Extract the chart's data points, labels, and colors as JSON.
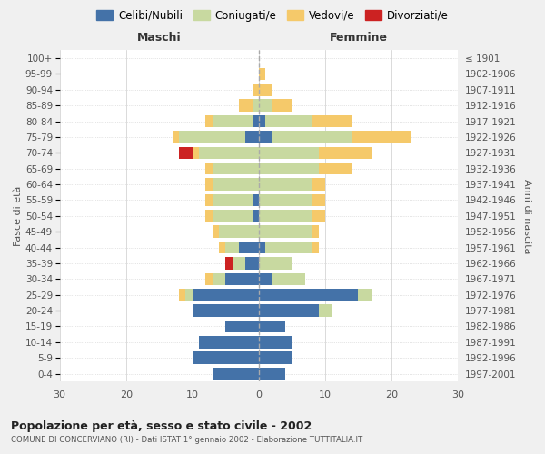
{
  "age_groups": [
    "100+",
    "95-99",
    "90-94",
    "85-89",
    "80-84",
    "75-79",
    "70-74",
    "65-69",
    "60-64",
    "55-59",
    "50-54",
    "45-49",
    "40-44",
    "35-39",
    "30-34",
    "25-29",
    "20-24",
    "15-19",
    "10-14",
    "5-9",
    "0-4"
  ],
  "birth_years": [
    "≤ 1901",
    "1902-1906",
    "1907-1911",
    "1912-1916",
    "1917-1921",
    "1922-1926",
    "1927-1931",
    "1932-1936",
    "1937-1941",
    "1942-1946",
    "1947-1951",
    "1952-1956",
    "1957-1961",
    "1962-1966",
    "1967-1971",
    "1972-1976",
    "1977-1981",
    "1982-1986",
    "1987-1991",
    "1992-1996",
    "1997-2001"
  ],
  "male": {
    "celibi": [
      0,
      0,
      0,
      0,
      1,
      2,
      0,
      0,
      0,
      1,
      1,
      0,
      3,
      2,
      5,
      10,
      10,
      5,
      9,
      10,
      7
    ],
    "coniugati": [
      0,
      0,
      0,
      1,
      6,
      10,
      9,
      7,
      7,
      6,
      6,
      6,
      2,
      2,
      2,
      1,
      0,
      0,
      0,
      0,
      0
    ],
    "vedovi": [
      0,
      0,
      1,
      2,
      1,
      1,
      1,
      1,
      1,
      1,
      1,
      1,
      1,
      0,
      1,
      1,
      0,
      0,
      0,
      0,
      0
    ],
    "divorziati": [
      0,
      0,
      0,
      0,
      0,
      0,
      2,
      0,
      0,
      0,
      0,
      0,
      0,
      1,
      0,
      0,
      0,
      0,
      0,
      0,
      0
    ]
  },
  "female": {
    "nubili": [
      0,
      0,
      0,
      0,
      1,
      2,
      0,
      0,
      0,
      0,
      0,
      0,
      1,
      0,
      2,
      15,
      9,
      4,
      5,
      5,
      4
    ],
    "coniugate": [
      0,
      0,
      0,
      2,
      7,
      12,
      9,
      9,
      8,
      8,
      8,
      8,
      7,
      5,
      5,
      2,
      2,
      0,
      0,
      0,
      0
    ],
    "vedove": [
      0,
      1,
      2,
      3,
      6,
      9,
      8,
      5,
      2,
      2,
      2,
      1,
      1,
      0,
      0,
      0,
      0,
      0,
      0,
      0,
      0
    ],
    "divorziate": [
      0,
      0,
      0,
      0,
      0,
      0,
      0,
      0,
      0,
      0,
      0,
      0,
      0,
      0,
      0,
      0,
      0,
      0,
      0,
      0,
      0
    ]
  },
  "colors": {
    "celibi": "#4472a8",
    "coniugati": "#c8d9a0",
    "vedovi": "#f5c96a",
    "divorziati": "#cc2222"
  },
  "xlim": 30,
  "title": "Popolazione per età, sesso e stato civile - 2002",
  "subtitle": "COMUNE DI CONCERVIANO (RI) - Dati ISTAT 1° gennaio 2002 - Elaborazione TUTTITALIA.IT",
  "ylabel_left": "Fasce di età",
  "ylabel_right": "Anni di nascita",
  "xlabel_left": "Maschi",
  "xlabel_right": "Femmine",
  "bg_color": "#f0f0f0",
  "plot_bg": "#ffffff"
}
